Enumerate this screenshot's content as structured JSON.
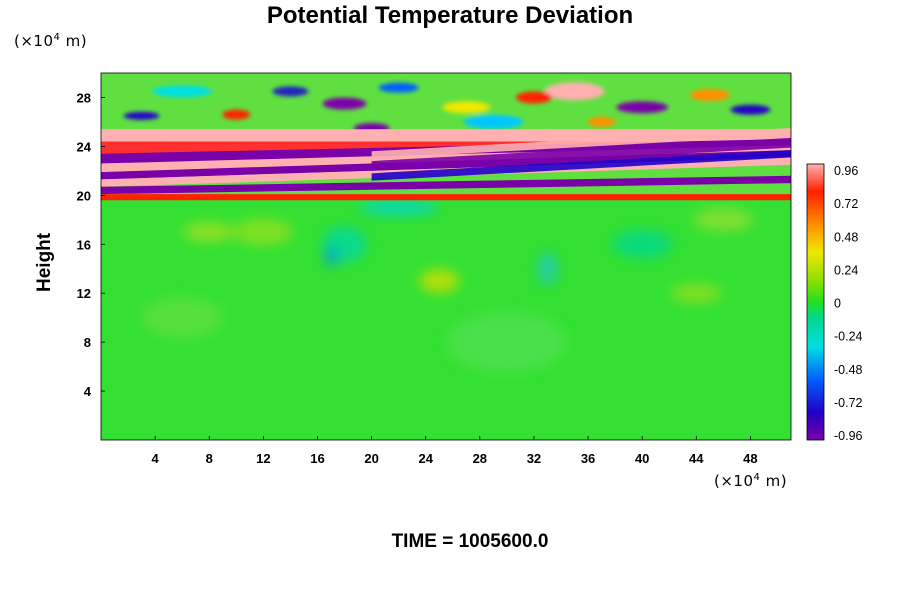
{
  "chart_data": {
    "type": "heatmap",
    "title": "Potential Temperature Deviation",
    "ylabel": "Height",
    "y_unit_prefix": "(×10",
    "unit_exponent": "4",
    "unit_suffix": " m)",
    "x_unit_prefix": "(×10",
    "xlim": [
      0,
      51
    ],
    "ylim": [
      0,
      30
    ],
    "x_ticks": [
      4,
      8,
      12,
      16,
      20,
      24,
      28,
      32,
      36,
      40,
      44,
      48
    ],
    "y_ticks": [
      4,
      8,
      12,
      16,
      20,
      24,
      28
    ],
    "colorbar": {
      "ticks": [
        "0.96",
        "0.72",
        "0.48",
        "0.24",
        "0",
        "-0.24",
        "-0.48",
        "-0.72",
        "-0.96"
      ],
      "range": [
        -0.96,
        0.96
      ]
    },
    "layers": [
      {
        "z_range": [
          0,
          20
        ],
        "description_value": 0.0
      },
      {
        "z_range": [
          20,
          30
        ],
        "description_value": "alternating ±0.96 bands"
      }
    ]
  },
  "footer": {
    "time_label": "TIME = 1005600.0"
  }
}
